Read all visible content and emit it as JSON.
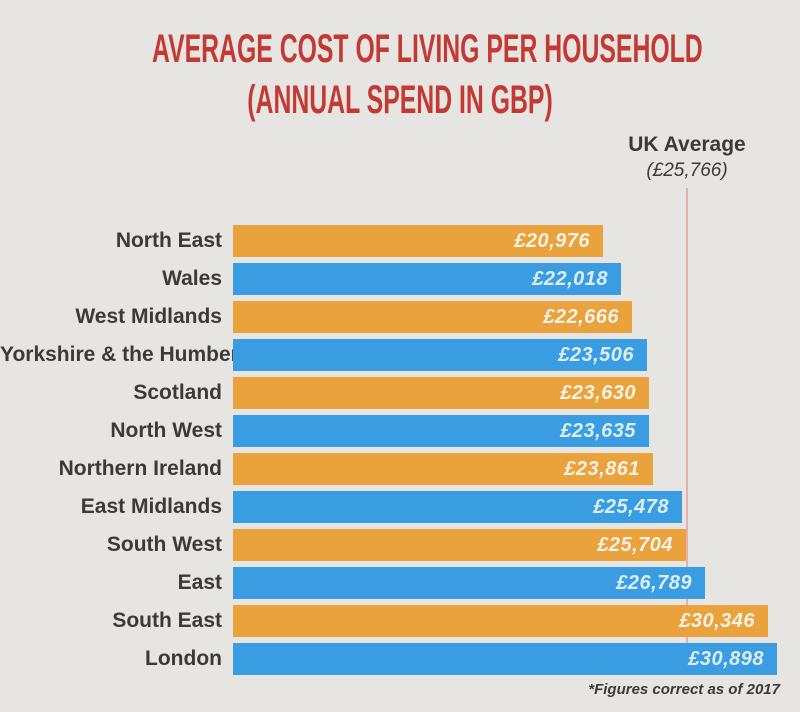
{
  "title": {
    "line1": "AVERAGE COST OF LIVING PER HOUSEHOLD",
    "line2": "(ANNUAL SPEND IN GBP)"
  },
  "uk_average": {
    "label": "UK Average",
    "value_label": "(£25,766)",
    "value": 25766
  },
  "footnote": "*Figures correct as of 2017",
  "colors": {
    "background": "#e6e5e2",
    "title_red": "#c23a33",
    "bar_orange": "#e9a23c",
    "bar_blue": "#3b9de1",
    "avg_line_pink": "#eaacb0",
    "label_text": "#3b3a39",
    "value_text_on_orange": "#f5f1e6",
    "value_text_on_blue": "#dcedfa"
  },
  "rows": [
    {
      "label": "North East",
      "value": 20976,
      "value_label": "£20,976",
      "color": "orange"
    },
    {
      "label": "Wales",
      "value": 22018,
      "value_label": "£22,018",
      "color": "blue"
    },
    {
      "label": "West Midlands",
      "value": 22666,
      "value_label": "£22,666",
      "color": "orange"
    },
    {
      "label": "Yorkshire & the Humber",
      "value": 23506,
      "value_label": "£23,506",
      "color": "blue"
    },
    {
      "label": "Scotland",
      "value": 23630,
      "value_label": "£23,630",
      "color": "orange"
    },
    {
      "label": "North West",
      "value": 23635,
      "value_label": "£23,635",
      "color": "blue"
    },
    {
      "label": "Northern Ireland",
      "value": 23861,
      "value_label": "£23,861",
      "color": "orange"
    },
    {
      "label": "East Midlands",
      "value": 25478,
      "value_label": "£25,478",
      "color": "blue"
    },
    {
      "label": "South West",
      "value": 25704,
      "value_label": "£25,704",
      "color": "orange"
    },
    {
      "label": "East",
      "value": 26789,
      "value_label": "£26,789",
      "color": "blue"
    },
    {
      "label": "South East",
      "value": 30346,
      "value_label": "£30,346",
      "color": "orange"
    },
    {
      "label": "London",
      "value": 30898,
      "value_label": "£30,898",
      "color": "blue"
    }
  ],
  "chart_data": {
    "type": "bar",
    "orientation": "horizontal",
    "title": "AVERAGE COST OF LIVING PER HOUSEHOLD (ANNUAL SPEND IN GBP)",
    "categories": [
      "North East",
      "Wales",
      "West Midlands",
      "Yorkshire & the Humber",
      "Scotland",
      "North West",
      "Northern Ireland",
      "East Midlands",
      "South West",
      "East",
      "South East",
      "London"
    ],
    "values": [
      20976,
      22018,
      22666,
      23506,
      23630,
      23635,
      23861,
      25478,
      25704,
      26789,
      30346,
      30898
    ],
    "value_labels": [
      "£20,976",
      "£22,018",
      "£22,666",
      "£23,506",
      "£23,630",
      "£23,635",
      "£23,861",
      "£25,478",
      "£25,704",
      "£26,789",
      "£30,346",
      "£30,898"
    ],
    "xlabel": "",
    "ylabel": "",
    "xlim": [
      0,
      32500
    ],
    "grid": false,
    "legend": "none",
    "bar_color_pattern": [
      "orange",
      "blue"
    ],
    "annotations": [
      {
        "type": "vertical-reference-line",
        "label": "UK Average",
        "value_label": "(£25,766)",
        "value": 25766
      }
    ],
    "footnote": "*Figures correct as of 2017",
    "sorted": "ascending"
  }
}
